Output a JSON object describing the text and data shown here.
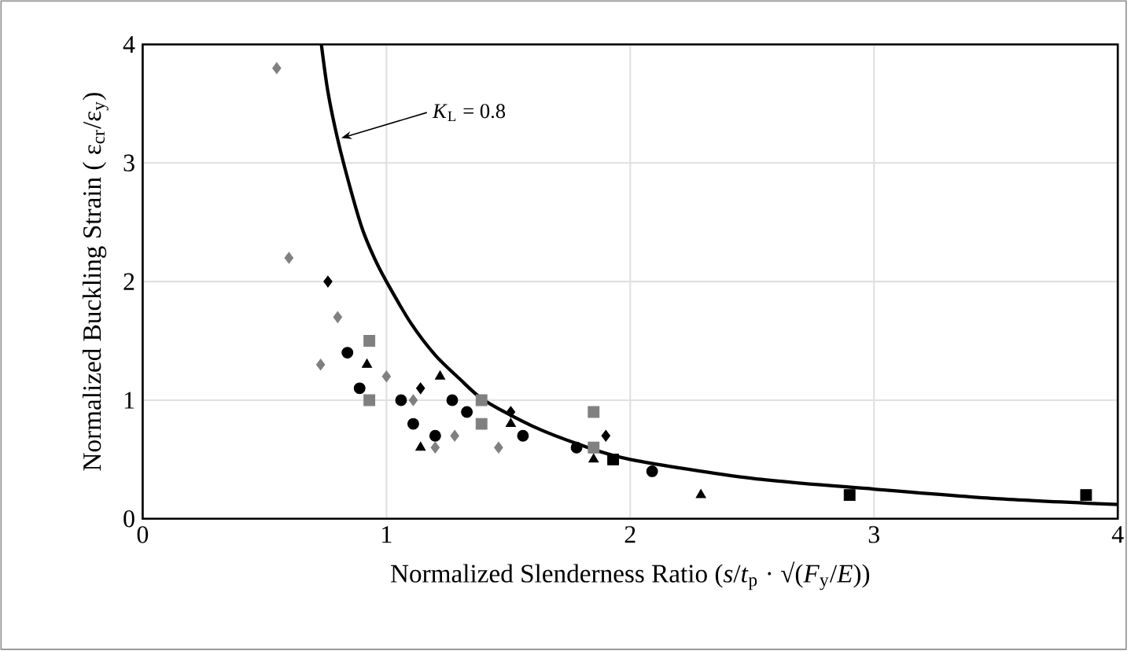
{
  "chart_data": {
    "type": "scatter",
    "xlabel": "Normalized Slenderness Ratio (*s*/*t*$_{p}$ · √(*F*$_{y}$/*E*))",
    "ylabel": "Normalized Buckling Strain ( ε$_{cr}$/ε$_{y}$)",
    "xlim": [
      0,
      4
    ],
    "ylim": [
      0,
      4
    ],
    "xticks": [
      0,
      1,
      2,
      3,
      4
    ],
    "yticks": [
      0,
      1,
      2,
      3,
      4
    ],
    "grid": true,
    "annotations": [
      {
        "text": "*K*$_{L}$ = 0.8",
        "x": 0.8,
        "y": 3.2
      }
    ],
    "series": [
      {
        "type": "line",
        "color": "#000000",
        "marker": "none",
        "x": [
          0.733,
          0.76,
          0.8,
          0.85,
          0.9,
          0.95,
          1.0,
          1.1,
          1.2,
          1.3,
          1.4,
          1.6,
          1.8,
          2.0,
          2.5,
          3.0,
          3.5,
          4.0
        ],
        "values": [
          4,
          3.6,
          3.2,
          2.8,
          2.45,
          2.2,
          2.0,
          1.65,
          1.38,
          1.18,
          1.0,
          0.78,
          0.62,
          0.5,
          0.34,
          0.25,
          0.17,
          0.12
        ]
      },
      {
        "color": "#808080",
        "marker": "diamond",
        "x": [
          0.55,
          0.6,
          0.8,
          0.73,
          1.0,
          1.11,
          1.28,
          1.2,
          1.46
        ],
        "values": [
          3.8,
          2.2,
          1.7,
          1.3,
          1.2,
          1.0,
          0.7,
          0.6,
          0.6
        ]
      },
      {
        "color": "#000000",
        "marker": "diamond",
        "x": [
          0.76,
          1.14,
          1.51,
          1.9
        ],
        "values": [
          2.0,
          1.1,
          0.9,
          0.7
        ]
      },
      {
        "color": "#808080",
        "marker": "square",
        "x": [
          0.93,
          0.93,
          1.39,
          1.39,
          1.85,
          1.85
        ],
        "values": [
          1.5,
          1.0,
          1.0,
          0.8,
          0.9,
          0.6
        ]
      },
      {
        "color": "#000000",
        "marker": "square",
        "x": [
          1.93,
          2.9,
          3.87
        ],
        "values": [
          0.5,
          0.2,
          0.2
        ]
      },
      {
        "color": "#000000",
        "marker": "circle",
        "x": [
          0.84,
          0.89,
          1.06,
          1.11,
          1.2,
          1.27,
          1.33,
          1.56,
          1.78,
          2.09
        ],
        "values": [
          1.4,
          1.1,
          1.0,
          0.8,
          0.7,
          1.0,
          0.9,
          0.7,
          0.6,
          0.4
        ]
      },
      {
        "color": "#000000",
        "marker": "triangle",
        "x": [
          0.92,
          1.22,
          1.14,
          1.51,
          1.85,
          2.29
        ],
        "values": [
          1.3,
          1.2,
          0.6,
          0.8,
          0.5,
          0.2
        ]
      }
    ]
  }
}
